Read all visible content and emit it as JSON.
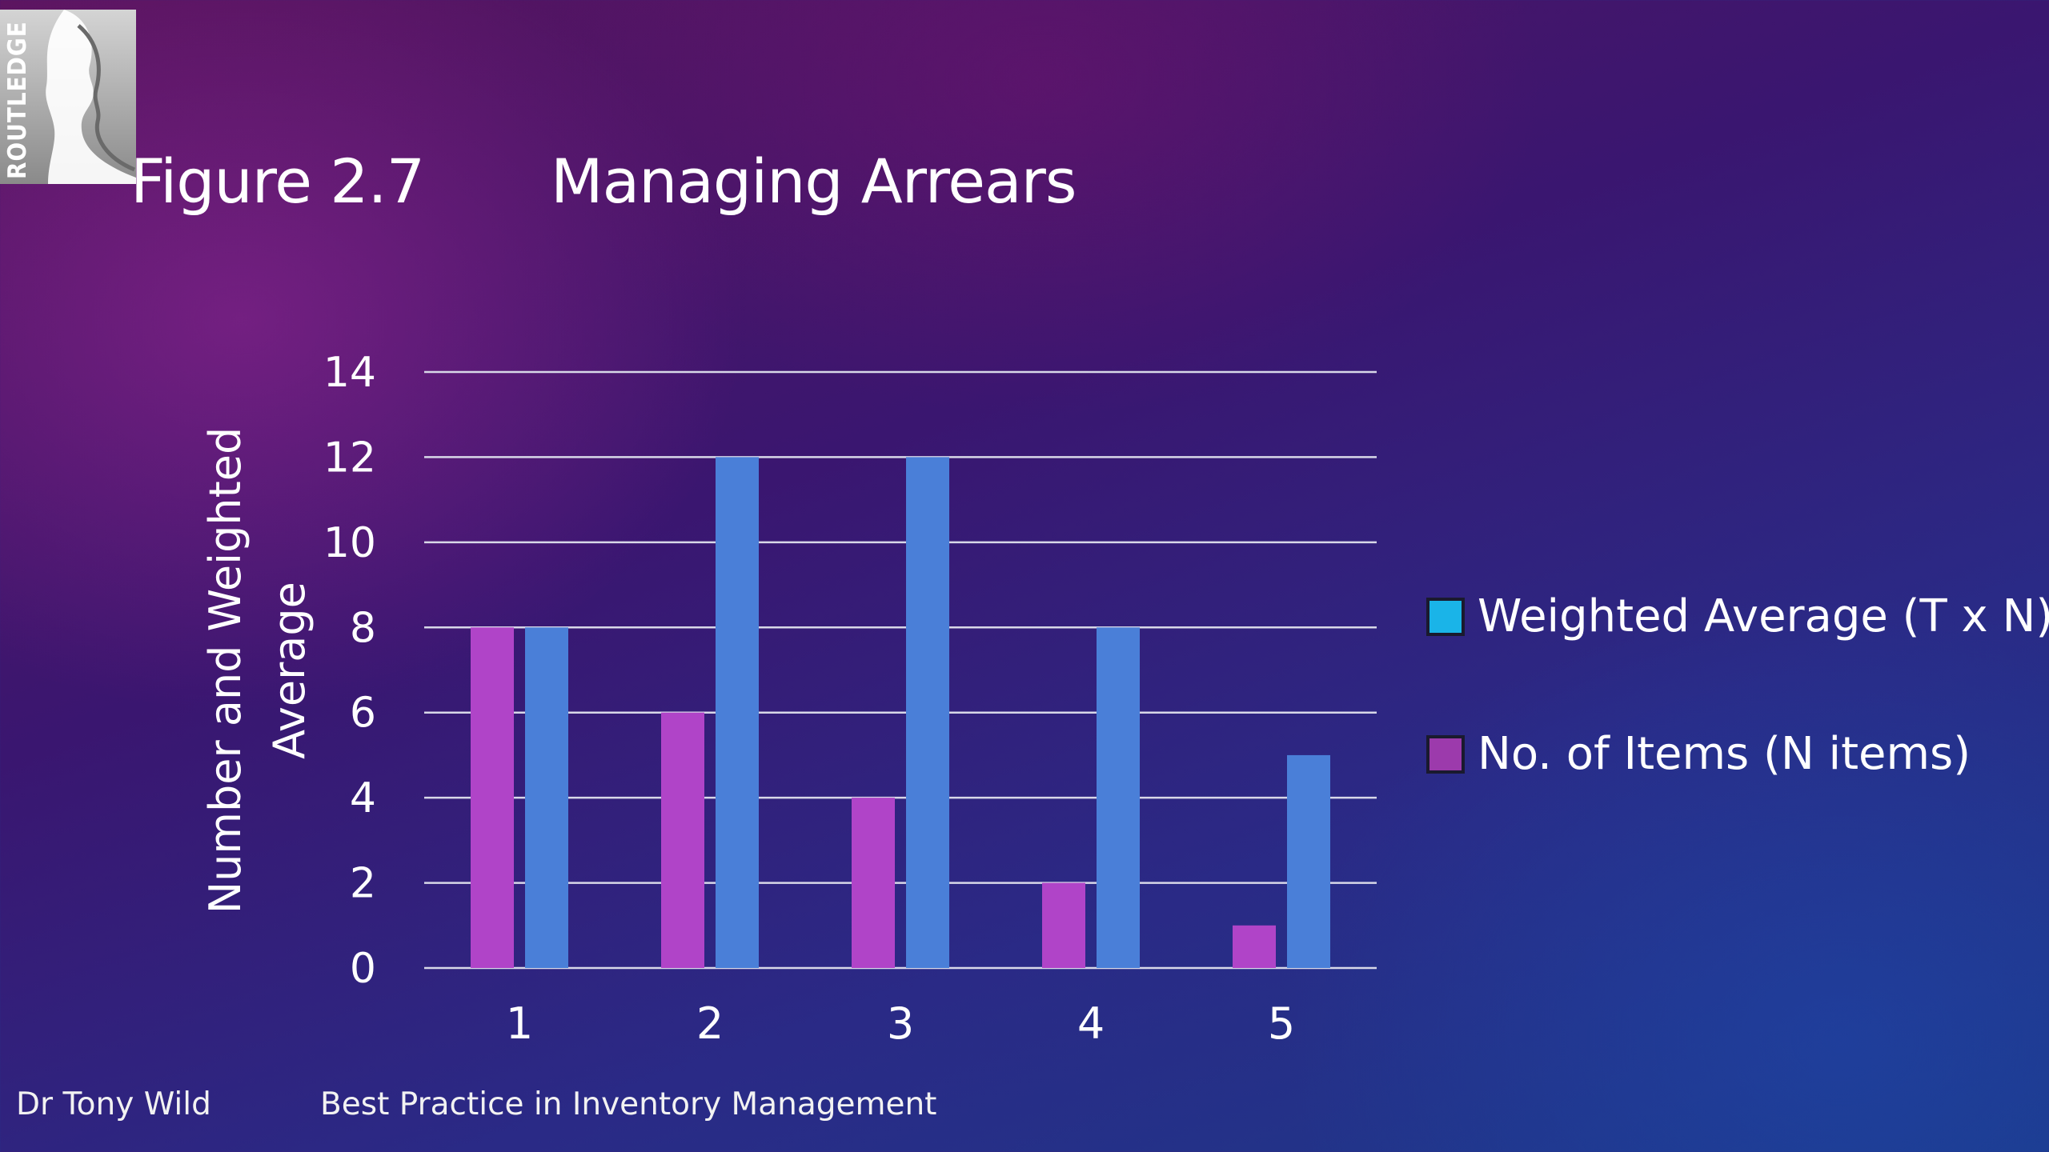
{
  "logo": {
    "text": "ROUTLEDGE"
  },
  "title": {
    "figure": "Figure 2.7",
    "name": "Managing Arrears"
  },
  "footer": {
    "author": "Dr Tony Wild",
    "book": "Best Practice in Inventory Management"
  },
  "colors": {
    "weighted": "#4a7fd8",
    "items": "#b044c8",
    "gridline": "#d8d8e8",
    "legend_weighted": "#1ab4e8",
    "legend_items": "#9c3aac"
  },
  "chart_data": {
    "type": "bar",
    "categories": [
      "1",
      "2",
      "3",
      "4",
      "5"
    ],
    "series": [
      {
        "name": "No. of Items (N items)",
        "values": [
          8,
          6,
          4,
          2,
          1
        ]
      },
      {
        "name": "Weighted Average (T x N),",
        "values": [
          8,
          12,
          12,
          8,
          5
        ]
      }
    ],
    "ylabel_line1": "Number and Weighted",
    "ylabel_line2": "Average",
    "xlabel": "",
    "ylim": [
      0,
      14
    ],
    "yticks": [
      0,
      2,
      4,
      6,
      8,
      10,
      12,
      14
    ],
    "grid": true,
    "legend_position": "right"
  }
}
